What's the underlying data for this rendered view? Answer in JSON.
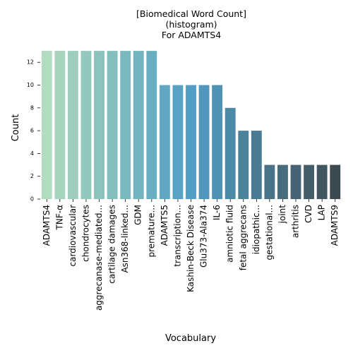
{
  "chart_data": {
    "type": "bar",
    "title_lines": [
      "[Biomedical Word Count]",
      "(histogram)",
      "For ADAMTS4"
    ],
    "xlabel": "Vocabulary",
    "ylabel": "Count",
    "ylim": [
      0,
      13.5
    ],
    "yticks": [
      "0",
      "2",
      "4",
      "6",
      "8",
      "10",
      "12"
    ],
    "grid": false,
    "categories": [
      "ADAMTS4",
      "TNF-α",
      "cardiovascular",
      "chondrocytes",
      "aggrecanase-mediated...",
      "cartilage damages",
      "Asn368-linked...",
      "GDM",
      "premature...",
      "ADAMTS5",
      "transcription...",
      "Kashin-Beck Disease",
      "Glu373-Ala374",
      "IL-6",
      "amniotic fluid",
      "fetal aggrecans",
      "idiopathic...",
      "gestational...",
      "joint",
      "arthritis",
      "CVD",
      "LAP",
      "ADAMTS9"
    ],
    "values": [
      13,
      13,
      13,
      13,
      13,
      13,
      13,
      13,
      13,
      10,
      10,
      10,
      10,
      10,
      8,
      6,
      6,
      3,
      3,
      3,
      3,
      3,
      3
    ],
    "colors": [
      "#b1dcc0",
      "#a6d3be",
      "#9ecdbd",
      "#94c8bd",
      "#8cc3bd",
      "#83bfbd",
      "#7ab9be",
      "#72b4c0",
      "#69aec1",
      "#62a7c1",
      "#5aa2c3",
      "#539ec5",
      "#5197bd",
      "#4f92b4",
      "#4c8aa8",
      "#4b839d",
      "#4a7b92",
      "#497387",
      "#476c7d",
      "#466473",
      "#435e69",
      "#405761",
      "#3b4a4f"
    ]
  }
}
